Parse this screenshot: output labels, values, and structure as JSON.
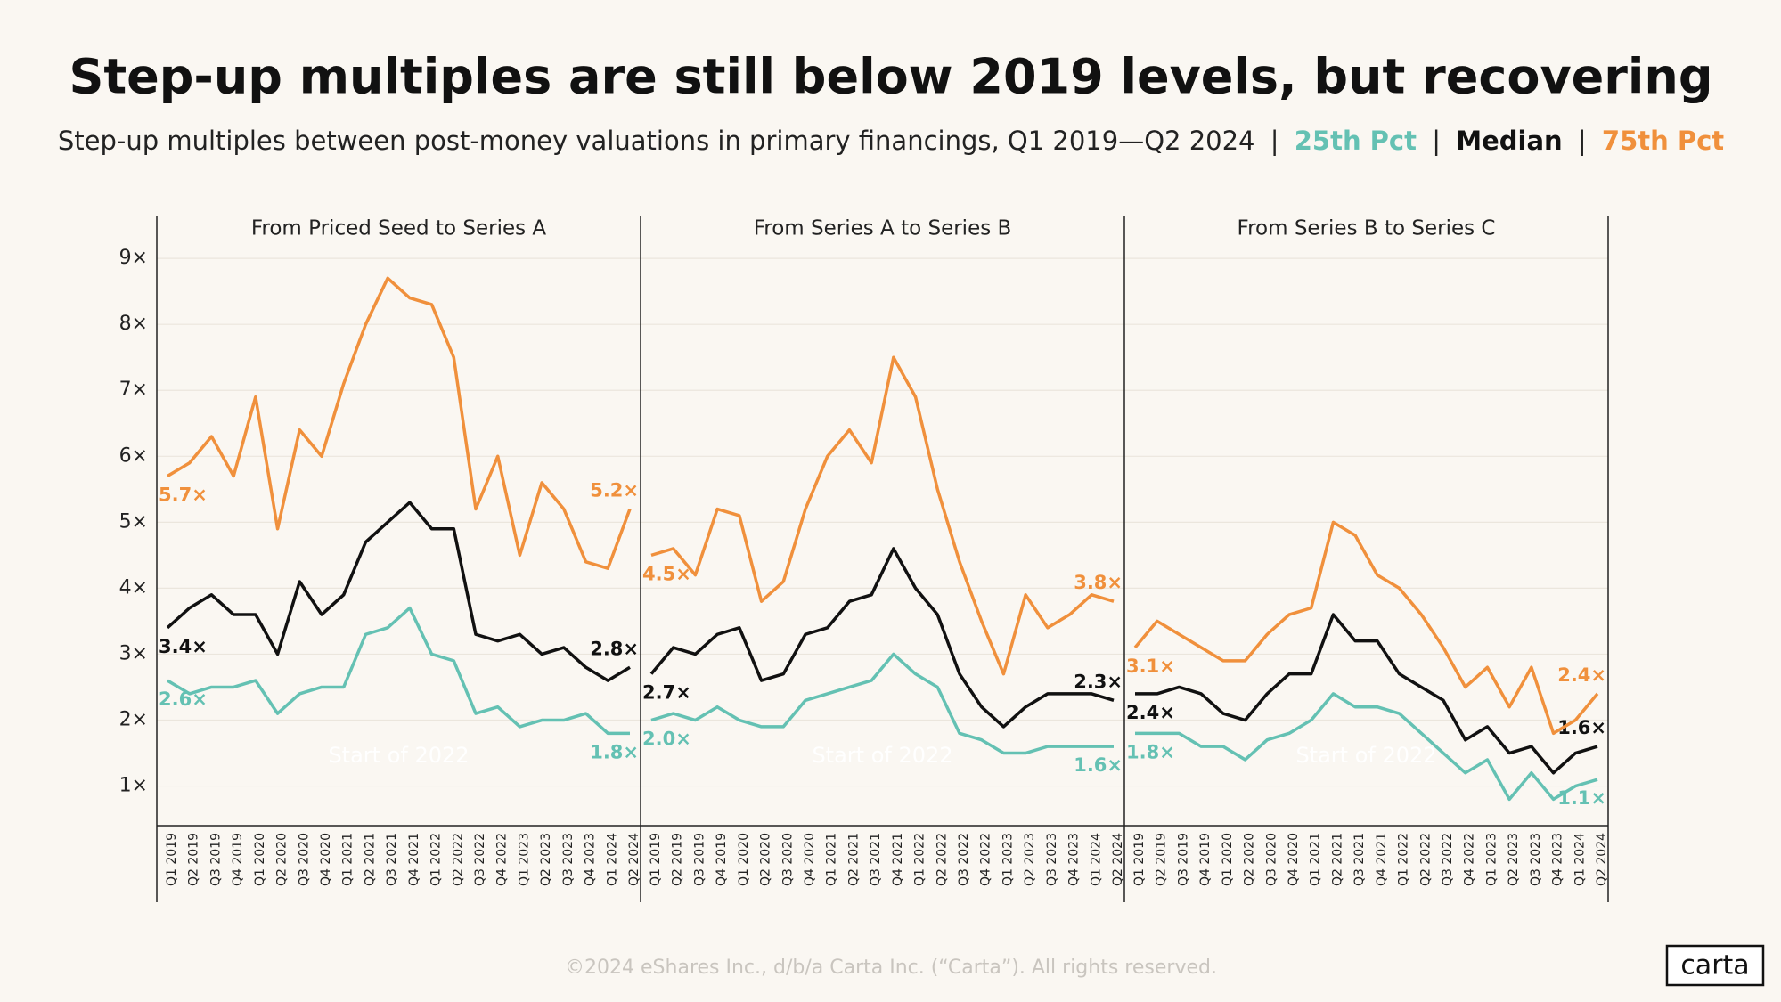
{
  "title": "Step-up multiples are still below 2019 levels, but recovering",
  "subtitle": "Step-up multiples between post-money valuations in primary financings, Q1 2019—Q2 2024",
  "subtitle_separator": "|",
  "footer": "©2024 eShares Inc., d/b/a Carta Inc. (“Carta”). All rights reserved.",
  "logo": "carta",
  "chart_data": [
    {
      "type": "line",
      "title": "From Priced Seed to Series A",
      "annotation": "Start of 2022",
      "categories": [
        "Q1 2019",
        "Q2 2019",
        "Q3 2019",
        "Q4 2019",
        "Q1 2020",
        "Q2 2020",
        "Q3 2020",
        "Q4 2020",
        "Q1 2021",
        "Q2 2021",
        "Q3 2021",
        "Q4 2021",
        "Q1 2022",
        "Q2 2022",
        "Q3 2022",
        "Q4 2022",
        "Q1 2023",
        "Q2 2023",
        "Q3 2023",
        "Q4 2023",
        "Q1 2024",
        "Q2 2024"
      ],
      "ylim": [
        0.4,
        9.65
      ],
      "yticks": [
        {
          "value": 1,
          "label": "1×"
        },
        {
          "value": 2,
          "label": "2×"
        },
        {
          "value": 3,
          "label": "3×"
        },
        {
          "value": 4,
          "label": "4×"
        },
        {
          "value": 5,
          "label": "5×"
        },
        {
          "value": 6,
          "label": "6×"
        },
        {
          "value": 7,
          "label": "7×"
        },
        {
          "value": 8,
          "label": "8×"
        },
        {
          "value": 9,
          "label": "9×"
        }
      ],
      "grid": true,
      "series": [
        {
          "name": "25th Pct",
          "color": "#64c1b3",
          "values": [
            2.6,
            2.4,
            2.5,
            2.5,
            2.6,
            2.1,
            2.4,
            2.5,
            2.5,
            3.3,
            3.4,
            3.7,
            3.0,
            2.9,
            2.1,
            2.2,
            1.9,
            2.0,
            2.0,
            2.1,
            1.8,
            1.8
          ],
          "value_labels": [
            "2.6×",
            null,
            null,
            null,
            null,
            null,
            null,
            null,
            null,
            null,
            null,
            null,
            null,
            null,
            null,
            null,
            null,
            null,
            null,
            null,
            null,
            "1.8×"
          ]
        },
        {
          "name": "Median",
          "color": "#111111",
          "values": [
            3.4,
            3.7,
            3.9,
            3.6,
            3.6,
            3.0,
            4.1,
            3.6,
            3.9,
            4.7,
            5.0,
            5.3,
            4.9,
            4.9,
            3.3,
            3.2,
            3.3,
            3.0,
            3.1,
            2.8,
            2.6,
            2.8
          ],
          "value_labels": [
            "3.4×",
            null,
            null,
            null,
            null,
            null,
            null,
            null,
            null,
            null,
            null,
            null,
            null,
            null,
            null,
            null,
            null,
            null,
            null,
            null,
            null,
            "2.8×"
          ]
        },
        {
          "name": "75th Pct",
          "color": "#f0903c",
          "values": [
            5.7,
            5.9,
            6.3,
            5.7,
            6.9,
            4.9,
            6.4,
            6.0,
            7.1,
            8.0,
            8.7,
            8.4,
            8.3,
            7.5,
            5.2,
            6.0,
            4.5,
            5.6,
            5.2,
            4.4,
            4.3,
            5.2
          ],
          "value_labels": [
            "5.7×",
            null,
            null,
            null,
            null,
            null,
            null,
            null,
            null,
            null,
            null,
            null,
            null,
            null,
            null,
            null,
            null,
            null,
            null,
            null,
            null,
            "5.2×"
          ]
        }
      ]
    },
    {
      "type": "line",
      "title": "From Series A to Series B",
      "annotation": "Start of 2022",
      "categories": [
        "Q1 2019",
        "Q2 2019",
        "Q3 2019",
        "Q4 2019",
        "Q1 2020",
        "Q2 2020",
        "Q3 2020",
        "Q4 2020",
        "Q1 2021",
        "Q2 2021",
        "Q3 2021",
        "Q4 2021",
        "Q1 2022",
        "Q2 2022",
        "Q3 2022",
        "Q4 2022",
        "Q1 2023",
        "Q2 2023",
        "Q3 2023",
        "Q4 2023",
        "Q1 2024",
        "Q2 2024"
      ],
      "ylim": [
        0.4,
        9.65
      ],
      "yticks": [
        1,
        2,
        3,
        4,
        5,
        6,
        7,
        8,
        9
      ],
      "grid": true,
      "series": [
        {
          "name": "25th Pct",
          "color": "#64c1b3",
          "values": [
            2.0,
            2.1,
            2.0,
            2.2,
            2.0,
            1.9,
            1.9,
            2.3,
            2.4,
            2.5,
            2.6,
            3.0,
            2.7,
            2.5,
            1.8,
            1.7,
            1.5,
            1.5,
            1.6,
            1.6,
            1.6,
            1.6
          ],
          "value_labels": [
            "2.0×",
            null,
            null,
            null,
            null,
            null,
            null,
            null,
            null,
            null,
            null,
            null,
            null,
            null,
            null,
            null,
            null,
            null,
            null,
            null,
            null,
            "1.6×"
          ]
        },
        {
          "name": "Median",
          "color": "#111111",
          "values": [
            2.7,
            3.1,
            3.0,
            3.3,
            3.4,
            2.6,
            2.7,
            3.3,
            3.4,
            3.8,
            3.9,
            4.6,
            4.0,
            3.6,
            2.7,
            2.2,
            1.9,
            2.2,
            2.4,
            2.4,
            2.4,
            2.3
          ],
          "value_labels": [
            "2.7×",
            null,
            null,
            null,
            null,
            null,
            null,
            null,
            null,
            null,
            null,
            null,
            null,
            null,
            null,
            null,
            null,
            null,
            null,
            null,
            null,
            "2.3×"
          ]
        },
        {
          "name": "75th Pct",
          "color": "#f0903c",
          "values": [
            4.5,
            4.6,
            4.2,
            5.2,
            5.1,
            3.8,
            4.1,
            5.2,
            6.0,
            6.4,
            5.9,
            7.5,
            6.9,
            5.5,
            4.4,
            3.5,
            2.7,
            3.9,
            3.4,
            3.6,
            3.9,
            3.8
          ],
          "value_labels": [
            "4.5×",
            null,
            null,
            null,
            null,
            null,
            null,
            null,
            null,
            null,
            null,
            null,
            null,
            null,
            null,
            null,
            null,
            null,
            null,
            null,
            null,
            "3.8×"
          ]
        }
      ]
    },
    {
      "type": "line",
      "title": "From Series B to Series C",
      "annotation": "Start of 2022",
      "categories": [
        "Q1 2019",
        "Q2 2019",
        "Q3 2019",
        "Q4 2019",
        "Q1 2020",
        "Q2 2020",
        "Q3 2020",
        "Q4 2020",
        "Q1 2021",
        "Q2 2021",
        "Q3 2021",
        "Q4 2021",
        "Q1 2022",
        "Q2 2022",
        "Q3 2022",
        "Q4 2022",
        "Q1 2023",
        "Q2 2023",
        "Q3 2023",
        "Q4 2023",
        "Q1 2024",
        "Q2 2024"
      ],
      "ylim": [
        0.4,
        9.65
      ],
      "yticks": [
        1,
        2,
        3,
        4,
        5,
        6,
        7,
        8,
        9
      ],
      "grid": true,
      "series": [
        {
          "name": "25th Pct",
          "color": "#64c1b3",
          "values": [
            1.8,
            1.8,
            1.8,
            1.6,
            1.6,
            1.4,
            1.7,
            1.8,
            2.0,
            2.4,
            2.2,
            2.2,
            2.1,
            1.8,
            1.5,
            1.2,
            1.4,
            0.8,
            1.2,
            0.8,
            1.0,
            1.1
          ],
          "value_labels": [
            "1.8×",
            null,
            null,
            null,
            null,
            null,
            null,
            null,
            null,
            null,
            null,
            null,
            null,
            null,
            null,
            null,
            null,
            null,
            null,
            null,
            null,
            "1.1×"
          ]
        },
        {
          "name": "Median",
          "color": "#111111",
          "values": [
            2.4,
            2.4,
            2.5,
            2.4,
            2.1,
            2.0,
            2.4,
            2.7,
            2.7,
            3.6,
            3.2,
            3.2,
            2.7,
            2.5,
            2.3,
            1.7,
            1.9,
            1.5,
            1.6,
            1.2,
            1.5,
            1.6
          ],
          "value_labels": [
            "2.4×",
            null,
            null,
            null,
            null,
            null,
            null,
            null,
            null,
            null,
            null,
            null,
            null,
            null,
            null,
            null,
            null,
            null,
            null,
            null,
            null,
            "1.6×"
          ]
        },
        {
          "name": "75th Pct",
          "color": "#f0903c",
          "values": [
            3.1,
            3.5,
            3.3,
            3.1,
            2.9,
            2.9,
            3.3,
            3.6,
            3.7,
            5.0,
            4.8,
            4.2,
            4.0,
            3.6,
            3.1,
            2.5,
            2.8,
            2.2,
            2.8,
            1.8,
            2.0,
            2.4
          ],
          "value_labels": [
            "3.1×",
            null,
            null,
            null,
            null,
            null,
            null,
            null,
            null,
            null,
            null,
            null,
            null,
            null,
            null,
            null,
            null,
            null,
            null,
            null,
            null,
            "2.4×"
          ]
        }
      ]
    }
  ]
}
